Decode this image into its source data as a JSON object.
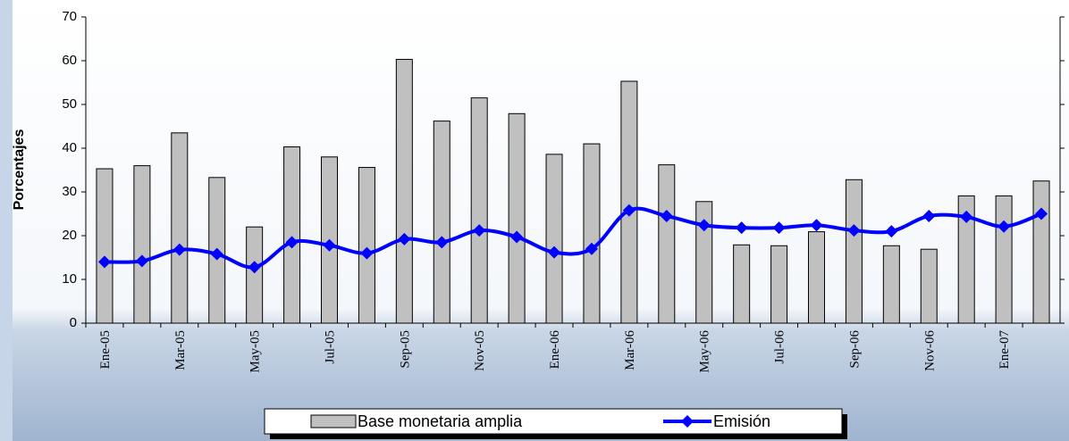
{
  "chart_data": {
    "type": "bar_line",
    "y_label": "Porcentajes",
    "categories": [
      "Ene-05",
      null,
      "Mar-05",
      null,
      "May-05",
      null,
      "Jul-05",
      null,
      "Sep-05",
      null,
      "Nov-05",
      null,
      "Ene-06",
      null,
      "Mar-06",
      null,
      "May-06",
      null,
      "Jul-06",
      null,
      "Sep-06",
      null,
      "Nov-06",
      null,
      "Ene-07",
      null
    ],
    "series": [
      {
        "name": "Base monetaria amplia",
        "type": "bar",
        "color": "#c0c0c0",
        "values": [
          35.3,
          36,
          43.5,
          33.3,
          22,
          40.3,
          38,
          35.6,
          60.3,
          46.2,
          51.5,
          47.9,
          38.6,
          41,
          55.3,
          36.2,
          27.8,
          17.9,
          17.7,
          20.9,
          32.8,
          17.7,
          16.9,
          29.1,
          29.1,
          32.5
        ]
      },
      {
        "name": "Emisión",
        "type": "line",
        "color": "#0000ff",
        "values": [
          14,
          14.2,
          16.8,
          15.8,
          12.8,
          18.5,
          17.8,
          16,
          19.2,
          18.5,
          21.2,
          19.7,
          16.2,
          17,
          25.8,
          24.5,
          22.4,
          21.8,
          21.8,
          22.4,
          21.2,
          21,
          24.5,
          24.3,
          22.1,
          25
        ]
      }
    ],
    "ylim": [
      0,
      70
    ],
    "yticks": [
      0,
      10,
      20,
      30,
      40,
      50,
      60,
      70
    ]
  }
}
